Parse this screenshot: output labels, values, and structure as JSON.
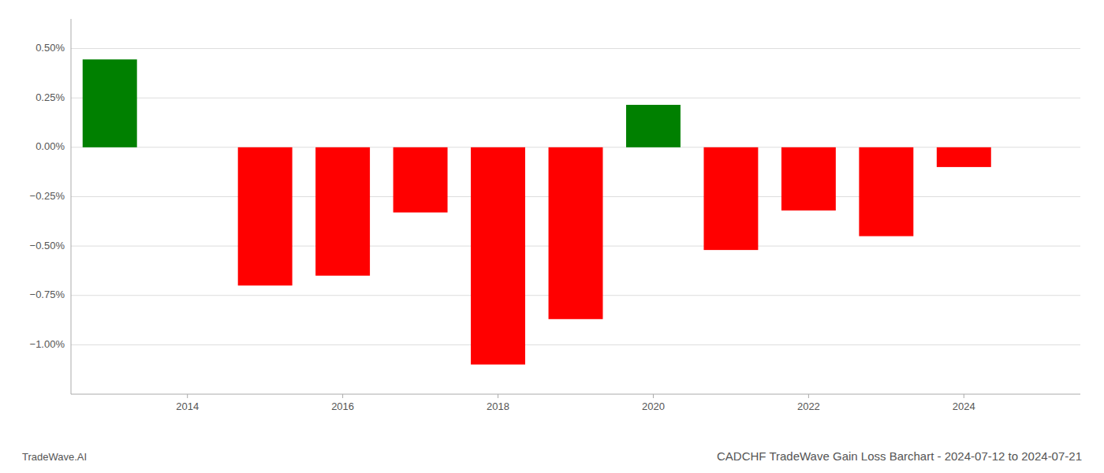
{
  "chart_data": {
    "type": "bar",
    "title": "CADCHF TradeWave Gain Loss Barchart - 2024-07-12 to 2024-07-21",
    "annotations": [
      "TradeWave.AI"
    ],
    "x": [
      2013,
      2015,
      2016,
      2017,
      2018,
      2019,
      2020,
      2021,
      2022,
      2023,
      2024
    ],
    "values": [
      0.445,
      -0.7,
      -0.65,
      -0.33,
      -1.1,
      -0.87,
      0.215,
      -0.52,
      -0.32,
      -0.45,
      -0.1
    ],
    "colors": [
      "#008000",
      "#ff0000",
      "#ff0000",
      "#ff0000",
      "#ff0000",
      "#ff0000",
      "#008000",
      "#ff0000",
      "#ff0000",
      "#ff0000",
      "#ff0000"
    ],
    "xlim": [
      2012.5,
      2025.5
    ],
    "xticks": [
      2014,
      2016,
      2018,
      2020,
      2022,
      2024
    ],
    "ylim": [
      -1.25,
      0.65
    ],
    "yticks": [
      {
        "value": 0.5,
        "label": "0.50%"
      },
      {
        "value": 0.25,
        "label": "0.25%"
      },
      {
        "value": 0.0,
        "label": "0.00%"
      },
      {
        "value": -0.25,
        "label": "−0.25%"
      },
      {
        "value": -0.5,
        "label": "−0.50%"
      },
      {
        "value": -0.75,
        "label": "−0.75%"
      },
      {
        "value": -1.0,
        "label": "−1.00%"
      }
    ],
    "grid": true
  }
}
